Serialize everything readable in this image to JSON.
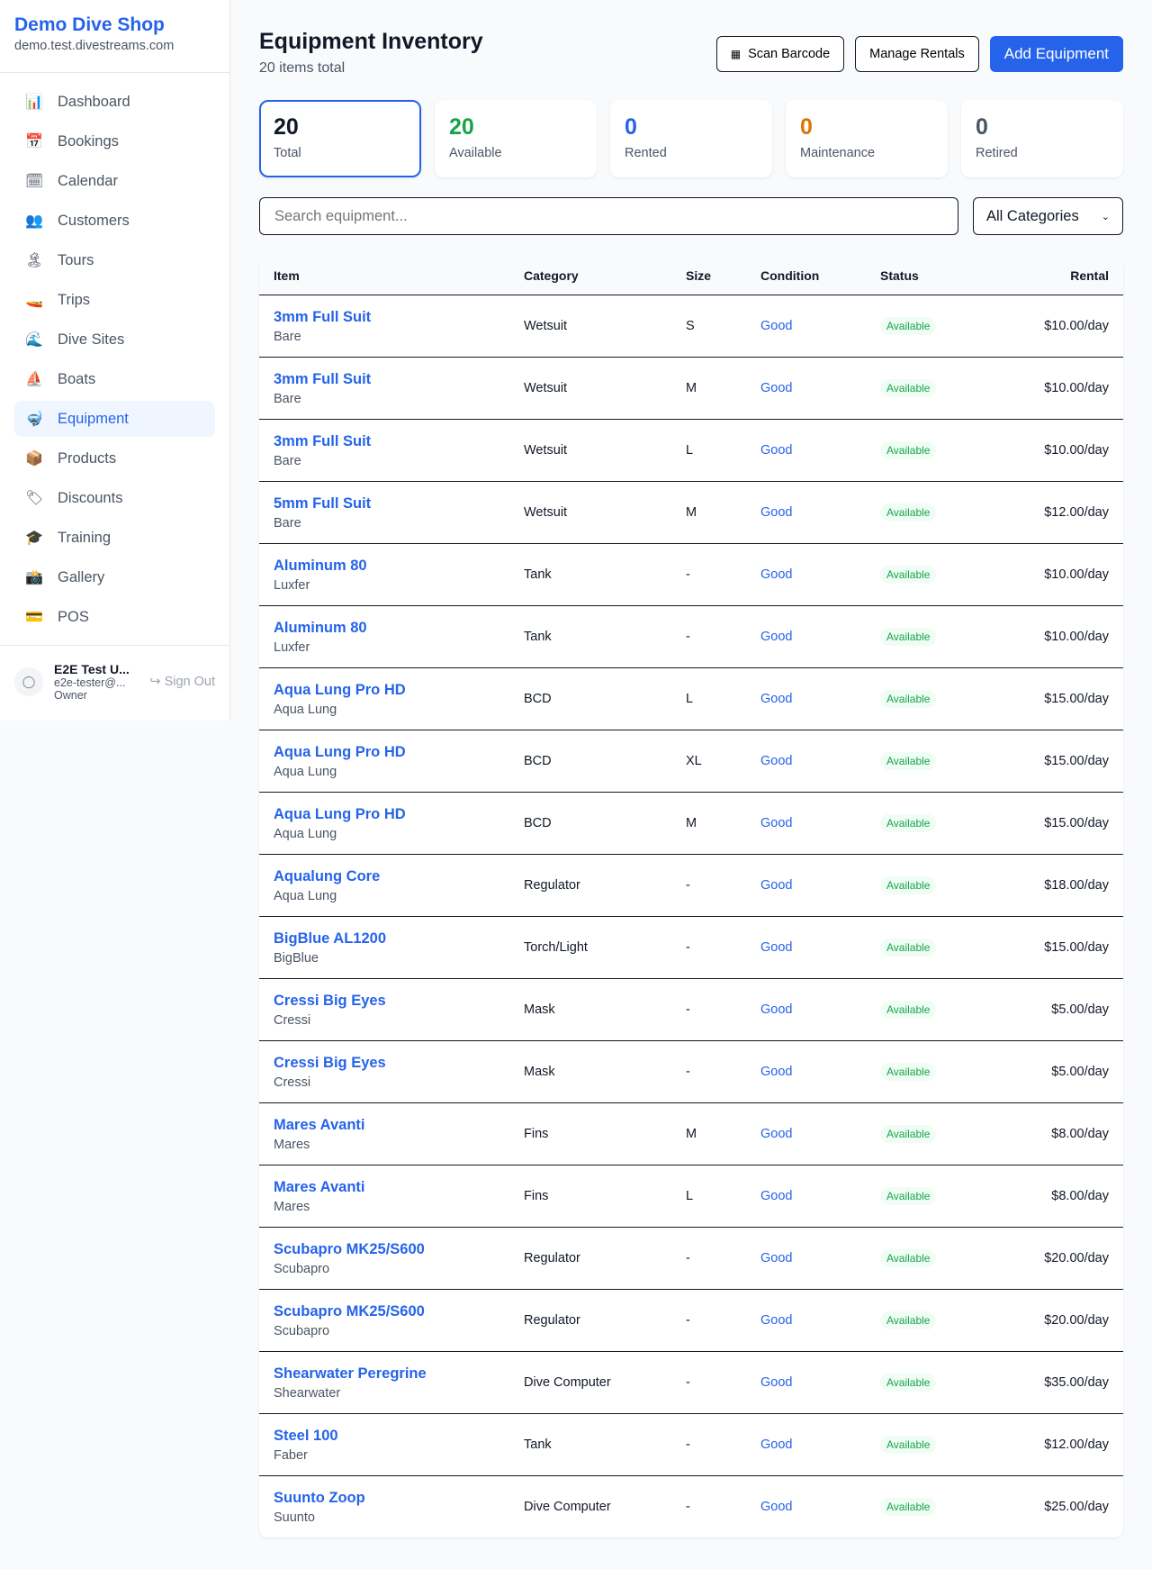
{
  "sidebar": {
    "brand": "Demo Dive Shop",
    "domain": "demo.test.divestreams.com",
    "items": [
      {
        "label": "Dashboard",
        "icon": "bar-chart-icon",
        "glyph": "📊"
      },
      {
        "label": "Bookings",
        "icon": "calendar-17-icon",
        "glyph": "📅"
      },
      {
        "label": "Calendar",
        "icon": "spiral-calendar-icon",
        "glyph": "🗓"
      },
      {
        "label": "Customers",
        "icon": "users-icon",
        "glyph": "👥"
      },
      {
        "label": "Tours",
        "icon": "island-icon",
        "glyph": "🏝"
      },
      {
        "label": "Trips",
        "icon": "speedboat-icon",
        "glyph": "🚤"
      },
      {
        "label": "Dive Sites",
        "icon": "wave-icon",
        "glyph": "🌊"
      },
      {
        "label": "Boats",
        "icon": "sailboat-icon",
        "glyph": "⛵"
      },
      {
        "label": "Equipment",
        "icon": "diving-mask-icon",
        "glyph": "🤿",
        "active": true
      },
      {
        "label": "Products",
        "icon": "package-icon",
        "glyph": "📦"
      },
      {
        "label": "Discounts",
        "icon": "tag-icon",
        "glyph": "🏷"
      },
      {
        "label": "Training",
        "icon": "graduation-cap-icon",
        "glyph": "🎓"
      },
      {
        "label": "Gallery",
        "icon": "camera-icon",
        "glyph": "📸"
      },
      {
        "label": "POS",
        "icon": "credit-card-icon",
        "glyph": "💳"
      }
    ],
    "user": {
      "name": "E2E Test U...",
      "email": "e2e-tester@...",
      "role": "Owner",
      "sign_out": "Sign Out"
    }
  },
  "header": {
    "title": "Equipment Inventory",
    "subtitle": "20 items total",
    "scan": "Scan Barcode",
    "manage": "Manage Rentals",
    "add": "Add Equipment"
  },
  "stats": [
    {
      "value": "20",
      "label": "Total",
      "color": "#111827"
    },
    {
      "value": "20",
      "label": "Available",
      "color": "#16a34a"
    },
    {
      "value": "0",
      "label": "Rented",
      "color": "#2563eb"
    },
    {
      "value": "0",
      "label": "Maintenance",
      "color": "#d97706"
    },
    {
      "value": "0",
      "label": "Retired",
      "color": "#4b5563"
    }
  ],
  "filters": {
    "search_placeholder": "Search equipment...",
    "category": "All Categories"
  },
  "table": {
    "columns": [
      "Item",
      "Category",
      "Size",
      "Condition",
      "Status",
      "Rental"
    ],
    "rows": [
      [
        "3mm Full Suit",
        "Bare",
        "Wetsuit",
        "S",
        "Good",
        "Available",
        "$10.00/day"
      ],
      [
        "3mm Full Suit",
        "Bare",
        "Wetsuit",
        "M",
        "Good",
        "Available",
        "$10.00/day"
      ],
      [
        "3mm Full Suit",
        "Bare",
        "Wetsuit",
        "L",
        "Good",
        "Available",
        "$10.00/day"
      ],
      [
        "5mm Full Suit",
        "Bare",
        "Wetsuit",
        "M",
        "Good",
        "Available",
        "$12.00/day"
      ],
      [
        "Aluminum 80",
        "Luxfer",
        "Tank",
        "-",
        "Good",
        "Available",
        "$10.00/day"
      ],
      [
        "Aluminum 80",
        "Luxfer",
        "Tank",
        "-",
        "Good",
        "Available",
        "$10.00/day"
      ],
      [
        "Aqua Lung Pro HD",
        "Aqua Lung",
        "BCD",
        "L",
        "Good",
        "Available",
        "$15.00/day"
      ],
      [
        "Aqua Lung Pro HD",
        "Aqua Lung",
        "BCD",
        "XL",
        "Good",
        "Available",
        "$15.00/day"
      ],
      [
        "Aqua Lung Pro HD",
        "Aqua Lung",
        "BCD",
        "M",
        "Good",
        "Available",
        "$15.00/day"
      ],
      [
        "Aqualung Core",
        "Aqua Lung",
        "Regulator",
        "-",
        "Good",
        "Available",
        "$18.00/day"
      ],
      [
        "BigBlue AL1200",
        "BigBlue",
        "Torch/Light",
        "-",
        "Good",
        "Available",
        "$15.00/day"
      ],
      [
        "Cressi Big Eyes",
        "Cressi",
        "Mask",
        "-",
        "Good",
        "Available",
        "$5.00/day"
      ],
      [
        "Cressi Big Eyes",
        "Cressi",
        "Mask",
        "-",
        "Good",
        "Available",
        "$5.00/day"
      ],
      [
        "Mares Avanti",
        "Mares",
        "Fins",
        "M",
        "Good",
        "Available",
        "$8.00/day"
      ],
      [
        "Mares Avanti",
        "Mares",
        "Fins",
        "L",
        "Good",
        "Available",
        "$8.00/day"
      ],
      [
        "Scubapro MK25/S600",
        "Scubapro",
        "Regulator",
        "-",
        "Good",
        "Available",
        "$20.00/day"
      ],
      [
        "Scubapro MK25/S600",
        "Scubapro",
        "Regulator",
        "-",
        "Good",
        "Available",
        "$20.00/day"
      ],
      [
        "Shearwater Peregrine",
        "Shearwater",
        "Dive Computer",
        "-",
        "Good",
        "Available",
        "$35.00/day"
      ],
      [
        "Steel 100",
        "Faber",
        "Tank",
        "-",
        "Good",
        "Available",
        "$12.00/day"
      ],
      [
        "Suunto Zoop",
        "Suunto",
        "Dive Computer",
        "-",
        "Good",
        "Available",
        "$25.00/day"
      ]
    ]
  }
}
